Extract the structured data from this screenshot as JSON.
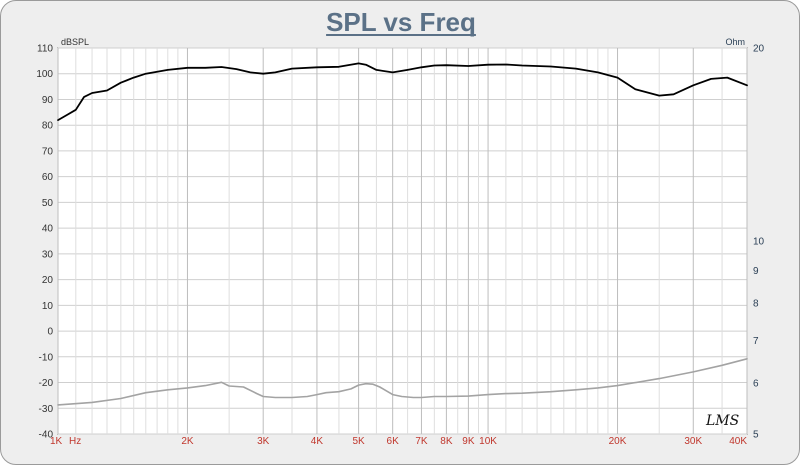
{
  "chart_data": {
    "type": "line",
    "title": "SPL vs Freq",
    "ylabel": "dBSPL",
    "y2label": "Ohm",
    "x_unit_label": "Hz",
    "xscale": "log",
    "xlim": [
      1000,
      40000
    ],
    "ylim": [
      -40,
      110
    ],
    "y2lim": [
      5,
      20
    ],
    "y2scale": "log",
    "grid": true,
    "watermark": "LMS",
    "y_ticks": [
      110,
      100,
      90,
      80,
      70,
      60,
      50,
      40,
      30,
      20,
      10,
      0,
      -10,
      -20,
      -30,
      -40
    ],
    "y2_ticks": [
      {
        "value": 20,
        "label": "20"
      },
      {
        "value": 10,
        "label": "10"
      },
      {
        "value": 9,
        "label": "9"
      },
      {
        "value": 8,
        "label": "8"
      },
      {
        "value": 7,
        "label": "7"
      },
      {
        "value": 6,
        "label": "6"
      },
      {
        "value": 5,
        "label": "5"
      }
    ],
    "x_ticks": [
      {
        "value": 1000,
        "label": "1K"
      },
      {
        "value": 2000,
        "label": "2K"
      },
      {
        "value": 3000,
        "label": "3K"
      },
      {
        "value": 4000,
        "label": "4K"
      },
      {
        "value": 5000,
        "label": "5K"
      },
      {
        "value": 6000,
        "label": "6K"
      },
      {
        "value": 7000,
        "label": "7K"
      },
      {
        "value": 8000,
        "label": "8K"
      },
      {
        "value": 9000,
        "label": "9K"
      },
      {
        "value": 10000,
        "label": "10K"
      },
      {
        "value": 20000,
        "label": "20K"
      },
      {
        "value": 30000,
        "label": "30K"
      },
      {
        "value": 40000,
        "label": "40K"
      }
    ],
    "x_minor_grid": [
      1100,
      1200,
      1300,
      1400,
      1500,
      1600,
      1700,
      1800,
      1900,
      2500,
      3500,
      4500,
      5500,
      6500,
      7500,
      8500,
      9500,
      11000,
      12000,
      13000,
      14000,
      15000,
      16000,
      17000,
      18000,
      19000,
      25000,
      35000
    ],
    "series": [
      {
        "axis": "left",
        "color": "#000000",
        "x": [
          1000,
          1050,
          1100,
          1150,
          1200,
          1300,
          1400,
          1500,
          1600,
          1800,
          2000,
          2200,
          2400,
          2600,
          2800,
          3000,
          3200,
          3500,
          4000,
          4500,
          5000,
          5200,
          5500,
          6000,
          6500,
          7000,
          7500,
          8000,
          9000,
          10000,
          11000,
          12000,
          14000,
          16000,
          18000,
          20000,
          22000,
          25000,
          27000,
          30000,
          33000,
          36000,
          40000
        ],
        "y": [
          82,
          84,
          86,
          91,
          92.5,
          93.5,
          96.5,
          98.5,
          100,
          101.5,
          102.3,
          102.3,
          102.6,
          101.8,
          100.5,
          100,
          100.5,
          102,
          102.5,
          102.7,
          104,
          103.5,
          101.5,
          100.5,
          101.5,
          102.5,
          103.2,
          103.3,
          103,
          103.5,
          103.6,
          103.2,
          102.8,
          102,
          100.5,
          98.5,
          94,
          91.5,
          92,
          95.5,
          98,
          98.5,
          95.5
        ]
      },
      {
        "axis": "right",
        "color": "#a3a3a3",
        "x": [
          1000,
          1200,
          1400,
          1600,
          1800,
          2000,
          2200,
          2400,
          2500,
          2700,
          2900,
          3000,
          3200,
          3500,
          3800,
          4000,
          4200,
          4500,
          4800,
          5000,
          5200,
          5400,
          5600,
          5800,
          6000,
          6300,
          6700,
          7000,
          7500,
          8000,
          9000,
          10000,
          11000,
          12000,
          14000,
          16000,
          18000,
          20000,
          25000,
          30000,
          35000,
          40000
        ],
        "y": [
          5.55,
          5.6,
          5.68,
          5.8,
          5.86,
          5.9,
          5.95,
          6.02,
          5.94,
          5.92,
          5.78,
          5.72,
          5.7,
          5.7,
          5.72,
          5.76,
          5.8,
          5.82,
          5.88,
          5.96,
          5.99,
          5.98,
          5.92,
          5.84,
          5.76,
          5.72,
          5.7,
          5.7,
          5.72,
          5.72,
          5.73,
          5.76,
          5.78,
          5.79,
          5.82,
          5.86,
          5.9,
          5.95,
          6.1,
          6.25,
          6.4,
          6.55
        ]
      }
    ]
  }
}
